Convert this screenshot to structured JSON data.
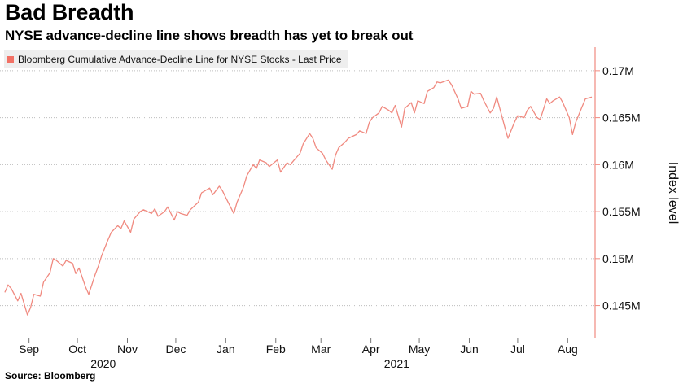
{
  "header": {
    "title": "Bad Breadth",
    "subtitle": "NYSE advance-decline line shows breadth has yet to break out"
  },
  "footer": {
    "source": "Source: Bloomberg"
  },
  "colors": {
    "line": "#f08a80",
    "swatch": "#f27165",
    "axis": "#f08a80",
    "grid": "#bdbdbd"
  },
  "chart_data": {
    "type": "line",
    "title": "Bad Breadth",
    "subtitle": "NYSE advance-decline line shows breadth has yet to break out",
    "ylabel": "Index level",
    "xlabel": "",
    "y_axis_side": "right",
    "ylim": [
      0.1415,
      0.1725
    ],
    "yunits": "M",
    "yticks": [
      {
        "value": 0.145,
        "label": "0.145M"
      },
      {
        "value": 0.15,
        "label": "0.15M"
      },
      {
        "value": 0.155,
        "label": "0.155M"
      },
      {
        "value": 0.16,
        "label": "0.16M"
      },
      {
        "value": 0.165,
        "label": "0.165M"
      },
      {
        "value": 0.17,
        "label": "0.17M"
      }
    ],
    "xlim": [
      "2020-08-28",
      "2021-09-01"
    ],
    "xticks": [
      {
        "date": "2020-09-15",
        "label": "Sep"
      },
      {
        "date": "2020-10-15",
        "label": "Oct"
      },
      {
        "date": "2020-11-15",
        "label": "Nov"
      },
      {
        "date": "2020-12-15",
        "label": "Dec"
      },
      {
        "date": "2021-01-15",
        "label": "Jan"
      },
      {
        "date": "2021-02-15",
        "label": "Feb"
      },
      {
        "date": "2021-03-15",
        "label": "Mar"
      },
      {
        "date": "2021-04-15",
        "label": "Apr"
      },
      {
        "date": "2021-05-15",
        "label": "May"
      },
      {
        "date": "2021-06-15",
        "label": "Jun"
      },
      {
        "date": "2021-07-15",
        "label": "Jul"
      },
      {
        "date": "2021-08-15",
        "label": "Aug"
      }
    ],
    "year_labels": [
      {
        "date": "2020-10-31",
        "label": "2020"
      },
      {
        "date": "2021-05-01",
        "label": "2021"
      }
    ],
    "legend": {
      "placement": "top-left",
      "entries": [
        "Bloomberg Cumulative Advance-Decline Line for NYSE Stocks - Last Price"
      ]
    },
    "grid": "horizontal dotted",
    "series": [
      {
        "name": "Bloomberg Cumulative Advance-Decline Line for NYSE Stocks - Last Price",
        "x": [
          "2020-08-31",
          "2020-09-02",
          "2020-09-04",
          "2020-09-08",
          "2020-09-10",
          "2020-09-14",
          "2020-09-16",
          "2020-09-18",
          "2020-09-22",
          "2020-09-24",
          "2020-09-28",
          "2020-09-30",
          "2020-10-02",
          "2020-10-06",
          "2020-10-08",
          "2020-10-12",
          "2020-10-14",
          "2020-10-16",
          "2020-10-20",
          "2020-10-22",
          "2020-10-26",
          "2020-10-28",
          "2020-10-30",
          "2020-11-03",
          "2020-11-05",
          "2020-11-09",
          "2020-11-11",
          "2020-11-13",
          "2020-11-17",
          "2020-11-19",
          "2020-11-23",
          "2020-11-25",
          "2020-11-30",
          "2020-12-02",
          "2020-12-04",
          "2020-12-08",
          "2020-12-10",
          "2020-12-14",
          "2020-12-16",
          "2020-12-18",
          "2020-12-22",
          "2020-12-24",
          "2020-12-29",
          "2020-12-31",
          "2021-01-05",
          "2021-01-07",
          "2021-01-11",
          "2021-01-13",
          "2021-01-15",
          "2021-01-20",
          "2021-01-22",
          "2021-01-26",
          "2021-01-28",
          "2021-02-01",
          "2021-02-03",
          "2021-02-05",
          "2021-02-09",
          "2021-02-11",
          "2021-02-16",
          "2021-02-18",
          "2021-02-22",
          "2021-02-24",
          "2021-02-26",
          "2021-03-02",
          "2021-03-04",
          "2021-03-08",
          "2021-03-10",
          "2021-03-12",
          "2021-03-16",
          "2021-03-18",
          "2021-03-22",
          "2021-03-24",
          "2021-03-26",
          "2021-03-30",
          "2021-04-01",
          "2021-04-06",
          "2021-04-08",
          "2021-04-12",
          "2021-04-14",
          "2021-04-16",
          "2021-04-20",
          "2021-04-22",
          "2021-04-26",
          "2021-04-28",
          "2021-04-30",
          "2021-05-04",
          "2021-05-06",
          "2021-05-10",
          "2021-05-12",
          "2021-05-14",
          "2021-05-18",
          "2021-05-20",
          "2021-05-24",
          "2021-05-26",
          "2021-05-28",
          "2021-06-02",
          "2021-06-04",
          "2021-06-08",
          "2021-06-10",
          "2021-06-14",
          "2021-06-16",
          "2021-06-18",
          "2021-06-22",
          "2021-06-24",
          "2021-06-28",
          "2021-06-30",
          "2021-07-02",
          "2021-07-07",
          "2021-07-09",
          "2021-07-13",
          "2021-07-15",
          "2021-07-19",
          "2021-07-21",
          "2021-07-23",
          "2021-07-27",
          "2021-07-29",
          "2021-08-02",
          "2021-08-04",
          "2021-08-06",
          "2021-08-10",
          "2021-08-12",
          "2021-08-16",
          "2021-08-18",
          "2021-08-20",
          "2021-08-24",
          "2021-08-26",
          "2021-08-30"
        ],
        "values": [
          0.1464,
          0.1472,
          0.1468,
          0.1455,
          0.1463,
          0.144,
          0.1448,
          0.1462,
          0.146,
          0.1475,
          0.1485,
          0.15,
          0.1498,
          0.1492,
          0.1498,
          0.1495,
          0.1484,
          0.149,
          0.147,
          0.1462,
          0.1483,
          0.1492,
          0.1503,
          0.152,
          0.1528,
          0.1535,
          0.1532,
          0.154,
          0.1528,
          0.1542,
          0.155,
          0.1552,
          0.1548,
          0.1553,
          0.1545,
          0.155,
          0.1555,
          0.1541,
          0.155,
          0.1548,
          0.1546,
          0.1552,
          0.156,
          0.157,
          0.1575,
          0.1568,
          0.1577,
          0.1572,
          0.1565,
          0.1548,
          0.156,
          0.1576,
          0.1588,
          0.16,
          0.1596,
          0.1605,
          0.1602,
          0.1598,
          0.1605,
          0.1592,
          0.1602,
          0.16,
          0.1604,
          0.1612,
          0.1622,
          0.1633,
          0.1628,
          0.1618,
          0.1612,
          0.1605,
          0.1595,
          0.161,
          0.1618,
          0.1624,
          0.1628,
          0.1632,
          0.1636,
          0.1633,
          0.1645,
          0.165,
          0.1655,
          0.1662,
          0.1658,
          0.1655,
          0.1663,
          0.164,
          0.166,
          0.1666,
          0.1655,
          0.1668,
          0.1665,
          0.1678,
          0.1682,
          0.1688,
          0.1687,
          0.169,
          0.1685,
          0.167,
          0.166,
          0.1662,
          0.1678,
          0.1675,
          0.1676,
          0.1668,
          0.1655,
          0.166,
          0.1672,
          0.164,
          0.1628,
          0.1645,
          0.1652,
          0.165,
          0.1658,
          0.1662,
          0.165,
          0.1648,
          0.167,
          0.1665,
          0.1668,
          0.1672,
          0.1666,
          0.165,
          0.1632,
          0.1645,
          0.1662,
          0.167,
          0.1672
        ]
      }
    ]
  }
}
